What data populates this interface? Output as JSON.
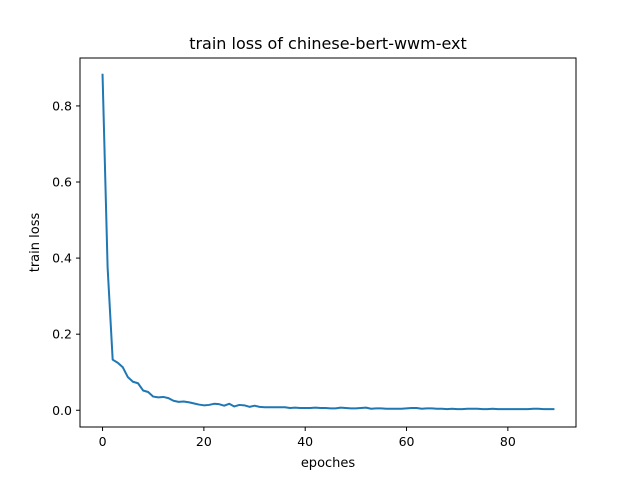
{
  "chart_data": {
    "type": "line",
    "title": "train loss of chinese-bert-wwm-ext",
    "xlabel": "epoches",
    "ylabel": "train loss",
    "xlim": [
      -4.45,
      93.45
    ],
    "ylim": [
      -0.044,
      0.926
    ],
    "xticks": [
      0,
      20,
      40,
      60,
      80
    ],
    "yticks": [
      0.0,
      0.2,
      0.4,
      0.6,
      0.8
    ],
    "xtick_labels": [
      "0",
      "20",
      "40",
      "60",
      "80"
    ],
    "ytick_labels": [
      "0.0",
      "0.2",
      "0.4",
      "0.6",
      "0.8"
    ],
    "grid": false,
    "legend": "none",
    "series": [
      {
        "color": "#1f77b4",
        "x": [
          0,
          1,
          2,
          3,
          4,
          5,
          6,
          7,
          8,
          9,
          10,
          11,
          12,
          13,
          14,
          15,
          16,
          17,
          18,
          19,
          20,
          21,
          22,
          23,
          24,
          25,
          26,
          27,
          28,
          29,
          30,
          31,
          32,
          33,
          34,
          35,
          36,
          37,
          38,
          39,
          40,
          41,
          42,
          43,
          44,
          45,
          46,
          47,
          48,
          49,
          50,
          51,
          52,
          53,
          54,
          55,
          56,
          57,
          58,
          59,
          60,
          61,
          62,
          63,
          64,
          65,
          66,
          67,
          68,
          69,
          70,
          71,
          72,
          73,
          74,
          75,
          76,
          77,
          78,
          79,
          80,
          81,
          82,
          83,
          84,
          85,
          86,
          87,
          88,
          89
        ],
        "y": [
          0.882,
          0.375,
          0.133,
          0.125,
          0.113,
          0.087,
          0.075,
          0.071,
          0.052,
          0.048,
          0.036,
          0.034,
          0.035,
          0.032,
          0.025,
          0.022,
          0.023,
          0.021,
          0.018,
          0.015,
          0.013,
          0.014,
          0.017,
          0.016,
          0.012,
          0.017,
          0.01,
          0.014,
          0.013,
          0.009,
          0.012,
          0.009,
          0.008,
          0.008,
          0.008,
          0.008,
          0.008,
          0.006,
          0.007,
          0.006,
          0.006,
          0.006,
          0.007,
          0.006,
          0.006,
          0.005,
          0.005,
          0.007,
          0.006,
          0.005,
          0.005,
          0.006,
          0.007,
          0.004,
          0.005,
          0.005,
          0.004,
          0.004,
          0.004,
          0.004,
          0.005,
          0.006,
          0.006,
          0.004,
          0.005,
          0.005,
          0.004,
          0.004,
          0.003,
          0.004,
          0.003,
          0.003,
          0.004,
          0.004,
          0.004,
          0.003,
          0.003,
          0.004,
          0.003,
          0.003,
          0.003,
          0.003,
          0.003,
          0.003,
          0.003,
          0.004,
          0.004,
          0.003,
          0.003,
          0.003
        ]
      }
    ]
  }
}
